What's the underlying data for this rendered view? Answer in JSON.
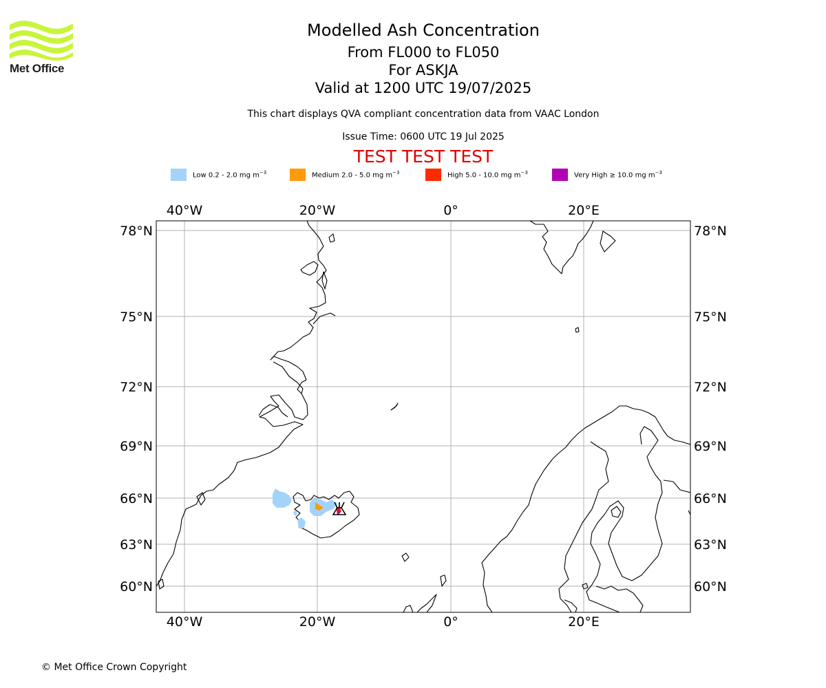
{
  "logo": {
    "text": "Met Office",
    "color": "#c8f53a"
  },
  "title": "Modelled Ash Concentration",
  "subtitle_lines": [
    "From FL000 to FL050",
    "For ASKJA",
    "Valid at 1200 UTC 19/07/2025"
  ],
  "qva_note": "This chart displays QVA compliant concentration data from VAAC London",
  "issue_time": "Issue Time: 0600 UTC 19 Jul 2025",
  "test_banner": "TEST TEST TEST",
  "legend": [
    {
      "label": "Low 0.2 - 2.0 mg m",
      "unit_exp": "−3",
      "color": "#a3d3fb"
    },
    {
      "label": "Medium 2.0 - 5.0 mg m",
      "unit_exp": "−3",
      "color": "#ff9a0a"
    },
    {
      "label": "High 5.0 - 10.0 mg m",
      "unit_exp": "−3",
      "color": "#ff2a00"
    },
    {
      "label": "Very High  ≥  10.0 mg m",
      "unit_exp": "−3",
      "color": "#b100b4"
    }
  ],
  "map": {
    "lon_labels": [
      "40°W",
      "20°W",
      "0°",
      "20°E"
    ],
    "lat_labels": [
      "78°N",
      "75°N",
      "72°N",
      "69°N",
      "66°N",
      "63°N",
      "60°N"
    ],
    "volcano": "ASKJA"
  },
  "copyright": "© Met Office Crown Copyright"
}
